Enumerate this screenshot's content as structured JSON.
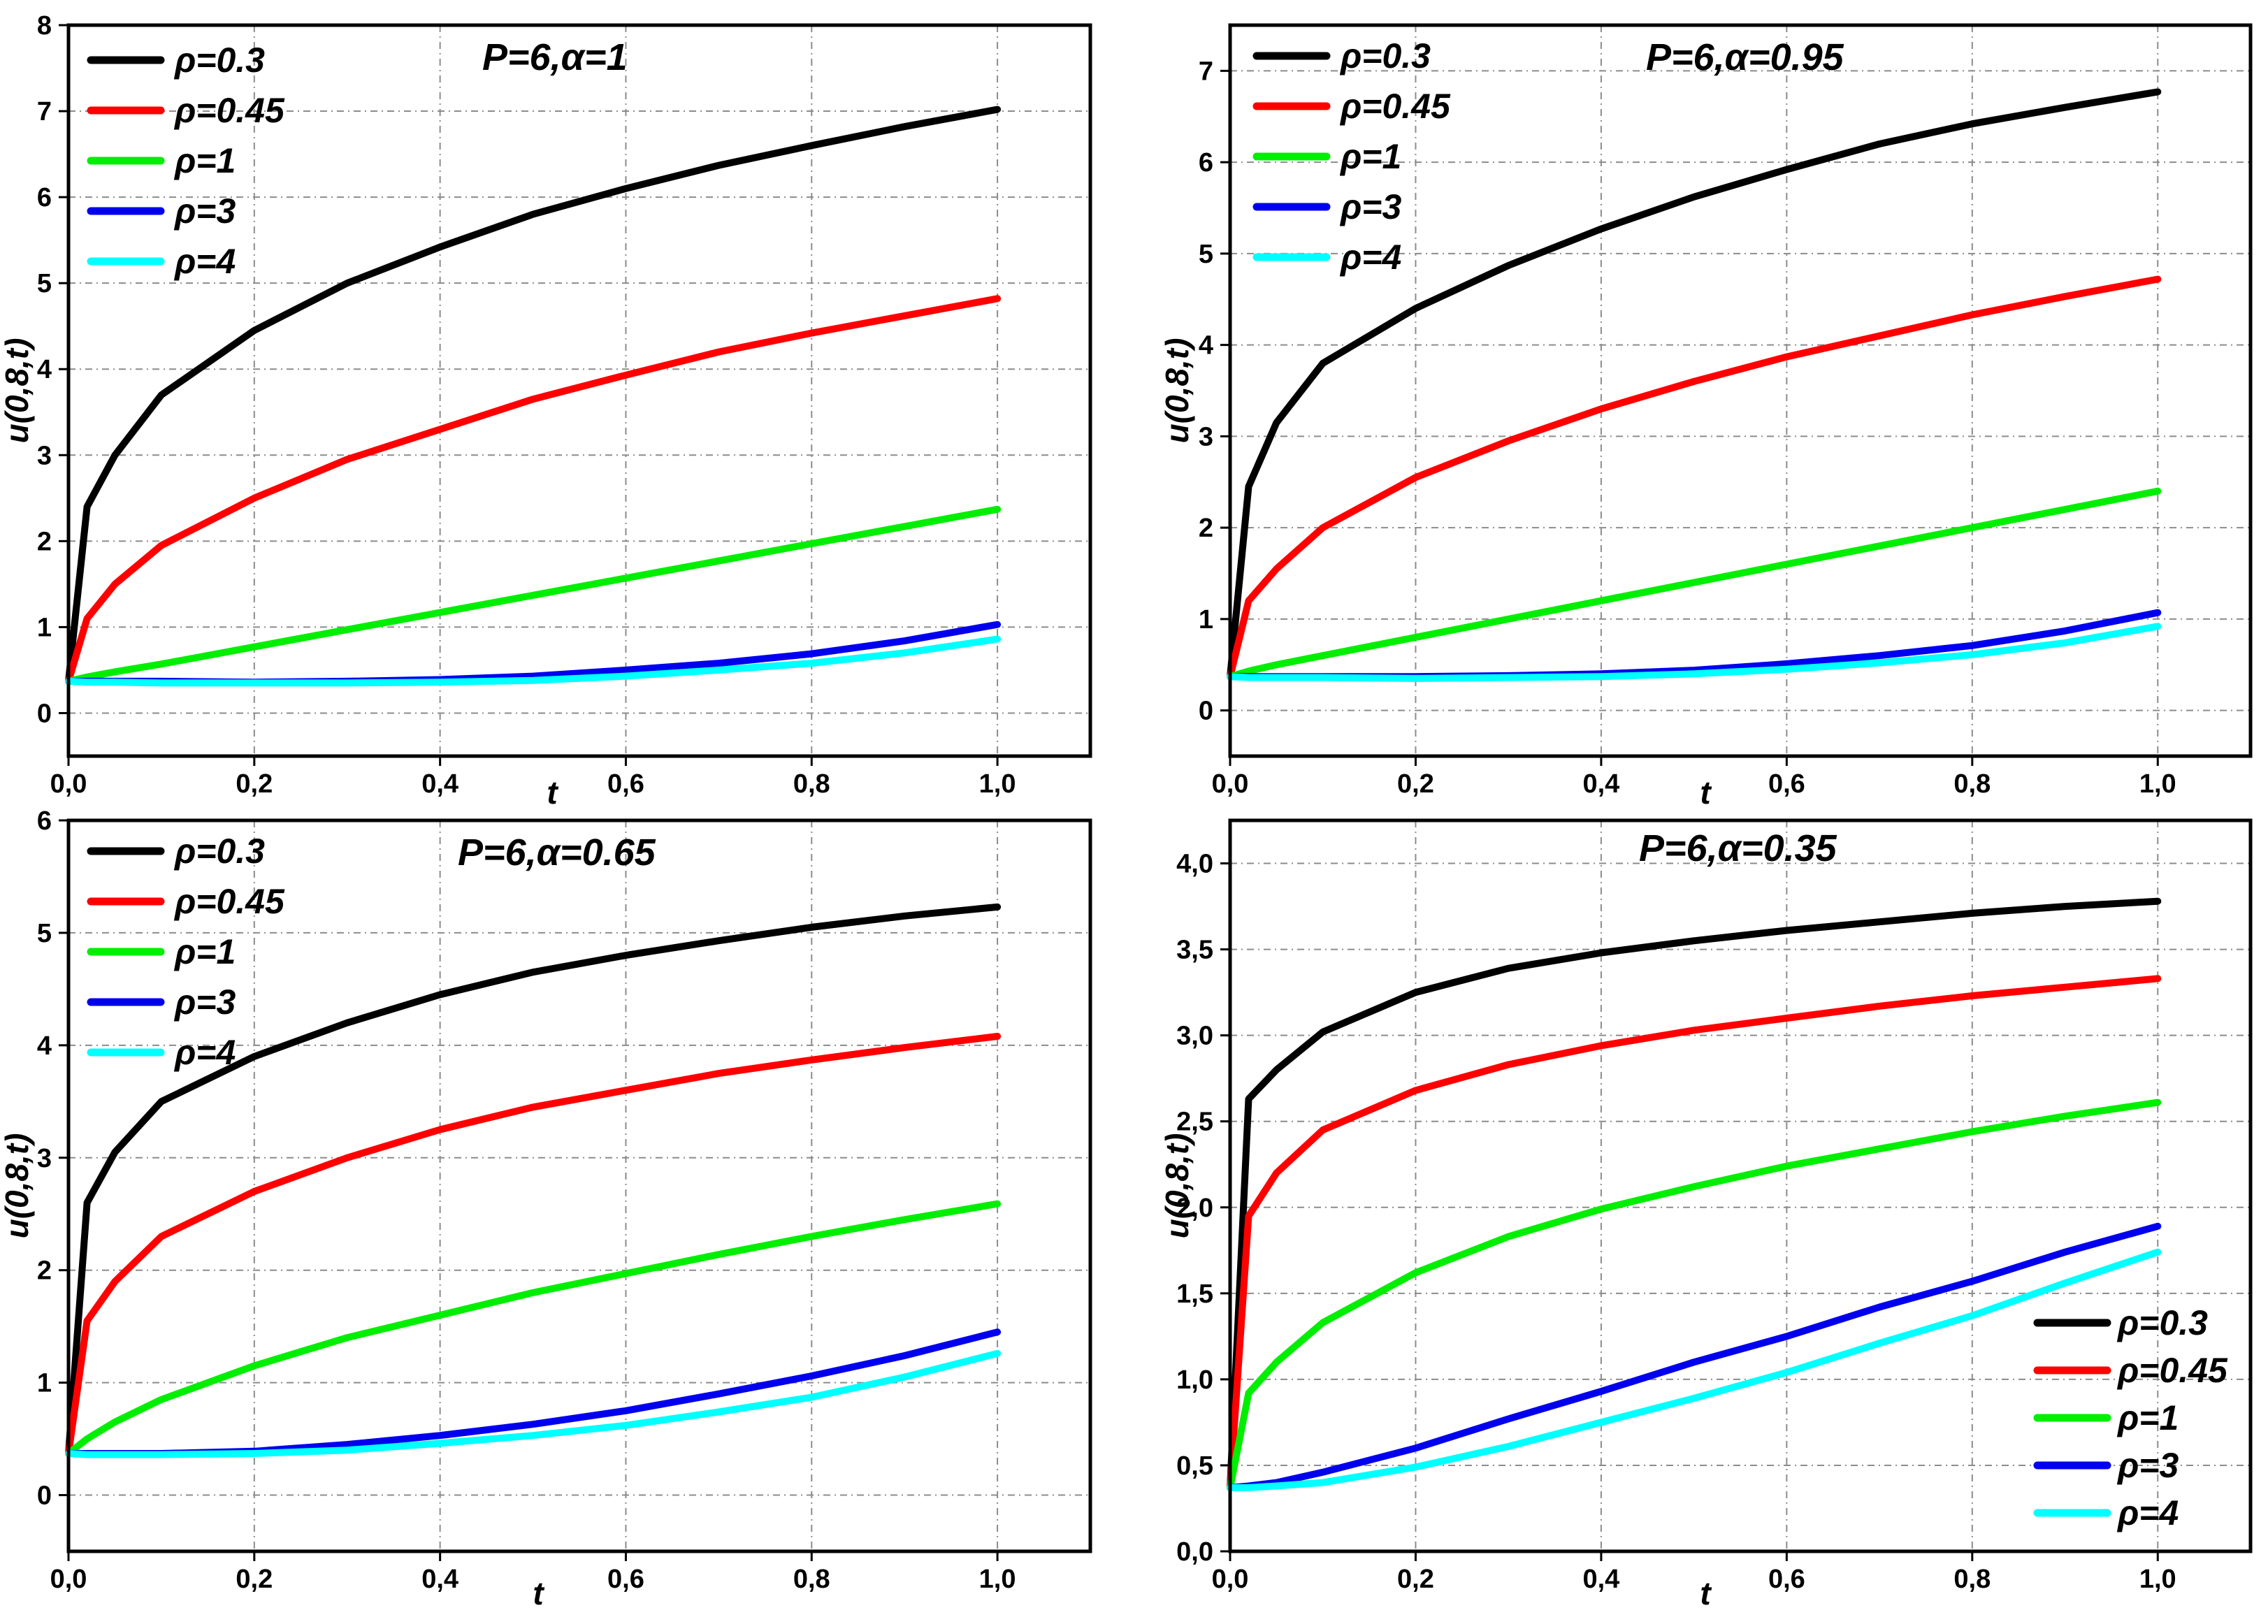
{
  "chart_data": [
    {
      "type": "line",
      "title": "P=6,α=1",
      "xlabel": "t",
      "ylabel": "u(0,8,t)",
      "xlim": [
        0,
        1.1
      ],
      "ylim": [
        -0.5,
        8
      ],
      "xticks": [
        "0,0",
        "0,2",
        "0,4",
        "0,6",
        "0,8",
        "1,0"
      ],
      "xtick_values": [
        0,
        0.2,
        0.4,
        0.6,
        0.8,
        1.0
      ],
      "yticks": [
        "0",
        "1",
        "2",
        "3",
        "4",
        "5",
        "6",
        "7",
        "8"
      ],
      "ytick_values": [
        0,
        1,
        2,
        3,
        4,
        5,
        6,
        7,
        8
      ],
      "grid": true,
      "legend_position": "top-left",
      "x": [
        0,
        0.02,
        0.05,
        0.1,
        0.2,
        0.3,
        0.4,
        0.5,
        0.6,
        0.7,
        0.8,
        0.9,
        1.0
      ],
      "series": [
        {
          "name": "ρ=0.3",
          "color": "#000000",
          "values": [
            0.37,
            2.4,
            3.0,
            3.7,
            4.45,
            5.0,
            5.42,
            5.8,
            6.1,
            6.37,
            6.6,
            6.82,
            7.02
          ]
        },
        {
          "name": "ρ=0.45",
          "color": "#ff0000",
          "values": [
            0.37,
            1.1,
            1.5,
            1.95,
            2.5,
            2.95,
            3.3,
            3.65,
            3.93,
            4.2,
            4.42,
            4.62,
            4.82
          ]
        },
        {
          "name": "ρ=1",
          "color": "#00ee00",
          "values": [
            0.37,
            0.42,
            0.48,
            0.57,
            0.77,
            0.97,
            1.17,
            1.37,
            1.57,
            1.77,
            1.97,
            2.17,
            2.37
          ]
        },
        {
          "name": "ρ=3",
          "color": "#0000ee",
          "values": [
            0.37,
            0.37,
            0.37,
            0.37,
            0.36,
            0.37,
            0.39,
            0.43,
            0.5,
            0.58,
            0.69,
            0.84,
            1.03
          ]
        },
        {
          "name": "ρ=4",
          "color": "#00ffff",
          "values": [
            0.37,
            0.36,
            0.36,
            0.35,
            0.35,
            0.35,
            0.36,
            0.38,
            0.43,
            0.5,
            0.58,
            0.7,
            0.86
          ]
        }
      ]
    },
    {
      "type": "line",
      "title": "P=6,α=0.95",
      "xlabel": "t",
      "ylabel": "u(0,8,t)",
      "xlim": [
        0,
        1.1
      ],
      "ylim": [
        -0.5,
        7.5
      ],
      "xticks": [
        "0,0",
        "0,2",
        "0,4",
        "0,6",
        "0,8",
        "1,0"
      ],
      "xtick_values": [
        0,
        0.2,
        0.4,
        0.6,
        0.8,
        1.0
      ],
      "yticks": [
        "0",
        "1",
        "2",
        "3",
        "4",
        "5",
        "6",
        "7"
      ],
      "ytick_values": [
        0,
        1,
        2,
        3,
        4,
        5,
        6,
        7
      ],
      "grid": true,
      "legend_position": "top-left",
      "x": [
        0,
        0.02,
        0.05,
        0.1,
        0.2,
        0.3,
        0.4,
        0.5,
        0.6,
        0.7,
        0.8,
        0.9,
        1.0
      ],
      "series": [
        {
          "name": "ρ=0.3",
          "color": "#000000",
          "values": [
            0.37,
            2.45,
            3.15,
            3.8,
            4.4,
            4.87,
            5.27,
            5.62,
            5.92,
            6.2,
            6.42,
            6.6,
            6.77
          ]
        },
        {
          "name": "ρ=0.45",
          "color": "#ff0000",
          "values": [
            0.37,
            1.2,
            1.55,
            2.0,
            2.55,
            2.95,
            3.3,
            3.6,
            3.87,
            4.1,
            4.33,
            4.53,
            4.72
          ]
        },
        {
          "name": "ρ=1",
          "color": "#00ee00",
          "values": [
            0.37,
            0.43,
            0.5,
            0.6,
            0.8,
            1.0,
            1.2,
            1.4,
            1.6,
            1.8,
            2.0,
            2.2,
            2.4
          ]
        },
        {
          "name": "ρ=3",
          "color": "#0000ee",
          "values": [
            0.37,
            0.37,
            0.37,
            0.37,
            0.37,
            0.38,
            0.4,
            0.44,
            0.51,
            0.6,
            0.71,
            0.87,
            1.07
          ]
        },
        {
          "name": "ρ=4",
          "color": "#00ffff",
          "values": [
            0.37,
            0.36,
            0.36,
            0.36,
            0.35,
            0.36,
            0.37,
            0.4,
            0.45,
            0.52,
            0.61,
            0.74,
            0.92
          ]
        }
      ]
    },
    {
      "type": "line",
      "title": "P=6,α=0.65",
      "xlabel": "t",
      "ylabel": "u(0,8,t)",
      "xlim": [
        0,
        1.1
      ],
      "ylim": [
        -0.5,
        6
      ],
      "xticks": [
        "0,0",
        "0,2",
        "0,4",
        "0,6",
        "0,8",
        "1,0"
      ],
      "xtick_values": [
        0,
        0.2,
        0.4,
        0.6,
        0.8,
        1.0
      ],
      "yticks": [
        "0",
        "1",
        "2",
        "3",
        "4",
        "5",
        "6"
      ],
      "ytick_values": [
        0,
        1,
        2,
        3,
        4,
        5,
        6
      ],
      "grid": true,
      "legend_position": "top-left",
      "x": [
        0,
        0.02,
        0.05,
        0.1,
        0.2,
        0.3,
        0.4,
        0.5,
        0.6,
        0.7,
        0.8,
        0.9,
        1.0
      ],
      "series": [
        {
          "name": "ρ=0.3",
          "color": "#000000",
          "values": [
            0.37,
            2.6,
            3.05,
            3.5,
            3.9,
            4.2,
            4.45,
            4.65,
            4.8,
            4.93,
            5.05,
            5.15,
            5.23
          ]
        },
        {
          "name": "ρ=0.45",
          "color": "#ff0000",
          "values": [
            0.37,
            1.55,
            1.9,
            2.3,
            2.7,
            3.0,
            3.25,
            3.45,
            3.6,
            3.75,
            3.87,
            3.98,
            4.08
          ]
        },
        {
          "name": "ρ=1",
          "color": "#00ee00",
          "values": [
            0.37,
            0.5,
            0.65,
            0.85,
            1.15,
            1.4,
            1.6,
            1.8,
            1.97,
            2.14,
            2.3,
            2.45,
            2.59
          ]
        },
        {
          "name": "ρ=3",
          "color": "#0000ee",
          "values": [
            0.37,
            0.37,
            0.37,
            0.37,
            0.39,
            0.45,
            0.53,
            0.63,
            0.75,
            0.9,
            1.06,
            1.24,
            1.45
          ]
        },
        {
          "name": "ρ=4",
          "color": "#00ffff",
          "values": [
            0.37,
            0.36,
            0.36,
            0.36,
            0.37,
            0.4,
            0.46,
            0.53,
            0.62,
            0.74,
            0.87,
            1.05,
            1.26
          ]
        }
      ]
    },
    {
      "type": "line",
      "title": "P=6,α=0.35",
      "xlabel": "t",
      "ylabel": "u(0,8,t)",
      "xlim": [
        0,
        1.1
      ],
      "ylim": [
        0,
        4.25
      ],
      "xticks": [
        "0,0",
        "0,2",
        "0,4",
        "0,6",
        "0,8",
        "1,0"
      ],
      "xtick_values": [
        0,
        0.2,
        0.4,
        0.6,
        0.8,
        1.0
      ],
      "yticks": [
        "0,0",
        "0,5",
        "1,0",
        "1,5",
        "2,0",
        "2,5",
        "3,0",
        "3,5",
        "4,0"
      ],
      "ytick_values": [
        0,
        0.5,
        1.0,
        1.5,
        2.0,
        2.5,
        3.0,
        3.5,
        4.0
      ],
      "grid": true,
      "legend_position": "bottom-right",
      "x": [
        0,
        0.02,
        0.05,
        0.1,
        0.2,
        0.3,
        0.4,
        0.5,
        0.6,
        0.7,
        0.8,
        0.9,
        1.0
      ],
      "series": [
        {
          "name": "ρ=0.3",
          "color": "#000000",
          "values": [
            0.37,
            2.63,
            2.8,
            3.02,
            3.25,
            3.39,
            3.48,
            3.55,
            3.61,
            3.66,
            3.71,
            3.75,
            3.78
          ]
        },
        {
          "name": "ρ=0.45",
          "color": "#ff0000",
          "values": [
            0.37,
            1.95,
            2.2,
            2.45,
            2.68,
            2.83,
            2.94,
            3.03,
            3.1,
            3.17,
            3.23,
            3.28,
            3.33
          ]
        },
        {
          "name": "ρ=1",
          "color": "#00ee00",
          "values": [
            0.37,
            0.92,
            1.1,
            1.33,
            1.62,
            1.83,
            1.99,
            2.12,
            2.24,
            2.34,
            2.44,
            2.53,
            2.61
          ]
        },
        {
          "name": "ρ=3",
          "color": "#0000ee",
          "values": [
            0.37,
            0.38,
            0.4,
            0.46,
            0.6,
            0.77,
            0.93,
            1.1,
            1.25,
            1.42,
            1.57,
            1.74,
            1.89
          ]
        },
        {
          "name": "ρ=4",
          "color": "#00ffff",
          "values": [
            0.37,
            0.37,
            0.38,
            0.4,
            0.49,
            0.61,
            0.75,
            0.89,
            1.04,
            1.21,
            1.37,
            1.56,
            1.74
          ]
        }
      ]
    }
  ]
}
